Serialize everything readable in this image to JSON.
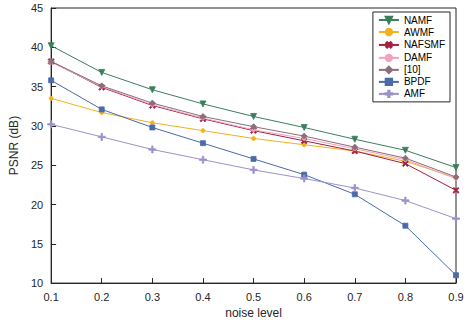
{
  "chart_data": {
    "type": "line",
    "x_label": "noise level",
    "y_label": "PSNR (dB)",
    "x": [
      0.1,
      0.2,
      0.3,
      0.4,
      0.5,
      0.6,
      0.7,
      0.8,
      0.9
    ],
    "xlim": [
      0.1,
      0.9
    ],
    "xticks": [
      0.1,
      0.2,
      0.3,
      0.4,
      0.5,
      0.6,
      0.7,
      0.8,
      0.9
    ],
    "ylim": [
      10,
      45
    ],
    "yticks": [
      10,
      15,
      20,
      25,
      30,
      35,
      40,
      45
    ],
    "grid": false,
    "legend": "upper right",
    "series": [
      {
        "name": "NAMF",
        "color": "#3b7f5c",
        "marker": "triangle_down",
        "line_style": "solid",
        "values": [
          40.2,
          36.8,
          34.6,
          32.8,
          31.2,
          29.8,
          28.3,
          26.9,
          24.7
        ]
      },
      {
        "name": "AWMF",
        "color": "#f2b21e",
        "marker": "circle",
        "line_style": "solid",
        "values": [
          33.5,
          31.7,
          30.4,
          29.4,
          28.4,
          27.6,
          26.8,
          25.5,
          23.4
        ]
      },
      {
        "name": "NAFSMF",
        "color": "#a3203f",
        "marker": "x",
        "line_style": "solid",
        "values": [
          38.2,
          34.9,
          32.6,
          30.9,
          29.4,
          28.1,
          26.8,
          25.2,
          21.8
        ]
      },
      {
        "name": "DAMF",
        "color": "#f0a3bb",
        "marker": "circle",
        "line_style": "solid",
        "values": [
          38.1,
          35.0,
          32.7,
          31.0,
          29.5,
          28.4,
          27.1,
          25.7,
          23.3
        ]
      },
      {
        "name": "[10]",
        "color": "#8c6d7d",
        "marker": "diamond",
        "line_style": "solid",
        "values": [
          38.2,
          35.1,
          32.9,
          31.2,
          29.9,
          28.7,
          27.3,
          25.9,
          23.5
        ]
      },
      {
        "name": "BPDF",
        "color": "#4a6aa8",
        "marker": "square",
        "line_style": "solid",
        "values": [
          35.8,
          32.1,
          29.8,
          27.8,
          25.8,
          23.8,
          21.3,
          17.3,
          11.0
        ]
      },
      {
        "name": "AMF",
        "color": "#9c92c9",
        "marker": "plus",
        "line_style": "solid",
        "values": [
          30.2,
          28.6,
          27.0,
          25.7,
          24.4,
          23.3,
          22.1,
          20.5,
          18.2
        ]
      }
    ]
  }
}
